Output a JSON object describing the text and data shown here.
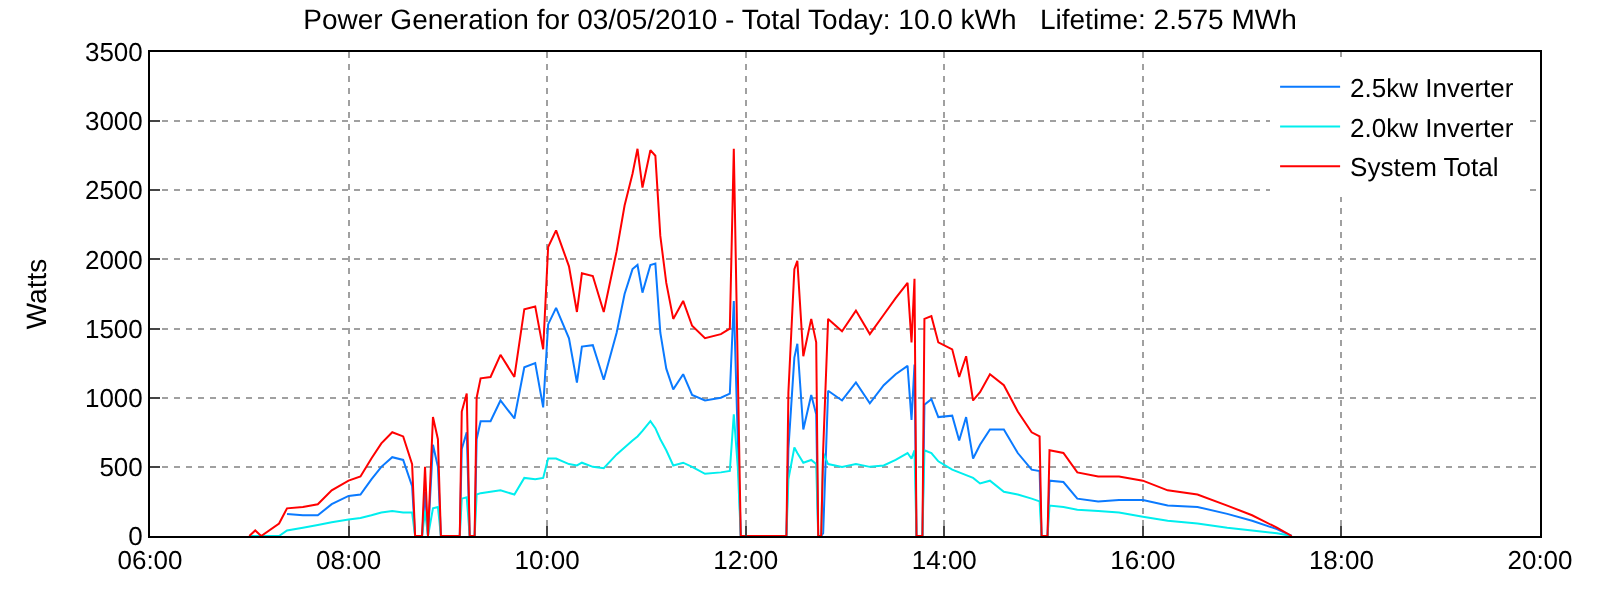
{
  "chart_data": {
    "type": "line",
    "title": "Power Generation for 03/05/2010 - Total Today: 10.0 kWh   Lifetime: 2.575 MWh",
    "ylabel": "Watts",
    "x": [
      7.0,
      7.06,
      7.12,
      7.3,
      7.38,
      7.54,
      7.69,
      7.83,
      8.0,
      8.12,
      8.23,
      8.33,
      8.44,
      8.55,
      8.64,
      8.67,
      8.74,
      8.77,
      8.8,
      8.85,
      8.9,
      8.93,
      9.12,
      9.14,
      9.19,
      9.22,
      9.27,
      9.29,
      9.33,
      9.43,
      9.53,
      9.67,
      9.77,
      9.88,
      9.96,
      10.01,
      10.09,
      10.22,
      10.3,
      10.35,
      10.46,
      10.57,
      10.7,
      10.78,
      10.86,
      10.91,
      10.96,
      11.04,
      11.09,
      11.14,
      11.2,
      11.27,
      11.37,
      11.46,
      11.59,
      11.75,
      11.84,
      11.88,
      11.92,
      11.95,
      12.41,
      12.43,
      12.49,
      12.52,
      12.58,
      12.66,
      12.71,
      12.73,
      12.76,
      12.78,
      12.83,
      12.97,
      13.11,
      13.25,
      13.39,
      13.51,
      13.63,
      13.67,
      13.7,
      13.72,
      13.78,
      13.8,
      13.87,
      13.94,
      14.08,
      14.15,
      14.22,
      14.29,
      14.36,
      14.46,
      14.6,
      14.74,
      14.88,
      14.96,
      14.98,
      15.04,
      15.06,
      15.2,
      15.34,
      15.55,
      15.76,
      16.0,
      16.25,
      16.55,
      16.85,
      17.1,
      17.35,
      17.5
    ],
    "series": [
      {
        "name": "2.5kw Inverter",
        "color": "#0a7aff",
        "values": [
          null,
          null,
          null,
          null,
          160,
          150,
          150,
          230,
          290,
          300,
          410,
          500,
          570,
          550,
          360,
          0,
          0,
          320,
          0,
          660,
          500,
          0,
          0,
          630,
          750,
          0,
          0,
          700,
          830,
          830,
          980,
          850,
          1220,
          1250,
          930,
          1530,
          1650,
          1430,
          1110,
          1370,
          1380,
          1130,
          1470,
          1750,
          1930,
          1960,
          1760,
          1960,
          1970,
          1470,
          1210,
          1060,
          1170,
          1020,
          980,
          1000,
          1030,
          1700,
          700,
          0,
          0,
          630,
          1290,
          1390,
          770,
          1020,
          880,
          0,
          0,
          20,
          1050,
          980,
          1110,
          960,
          1090,
          1170,
          1230,
          840,
          1240,
          0,
          0,
          950,
          990,
          860,
          870,
          690,
          860,
          560,
          660,
          770,
          770,
          600,
          480,
          470,
          0,
          0,
          400,
          390,
          270,
          250,
          260,
          260,
          220,
          210,
          160,
          110,
          50,
          0
        ]
      },
      {
        "name": "2.0kw Inverter",
        "color": "#00eeee",
        "values": [
          0,
          0,
          0,
          0,
          40,
          60,
          80,
          100,
          120,
          130,
          150,
          170,
          180,
          170,
          170,
          0,
          0,
          180,
          0,
          200,
          210,
          0,
          0,
          270,
          280,
          0,
          0,
          300,
          310,
          320,
          330,
          300,
          420,
          410,
          420,
          560,
          560,
          520,
          510,
          530,
          500,
          490,
          590,
          640,
          690,
          720,
          760,
          830,
          780,
          700,
          620,
          510,
          530,
          500,
          450,
          460,
          470,
          880,
          500,
          0,
          0,
          410,
          640,
          600,
          530,
          550,
          520,
          0,
          0,
          600,
          520,
          500,
          520,
          500,
          510,
          550,
          600,
          560,
          620,
          0,
          0,
          620,
          600,
          540,
          480,
          460,
          440,
          420,
          380,
          400,
          320,
          300,
          270,
          250,
          0,
          0,
          220,
          210,
          190,
          180,
          170,
          140,
          110,
          90,
          60,
          40,
          20,
          0
        ]
      },
      {
        "name": "System Total",
        "color": "#ff0000",
        "values": [
          0,
          40,
          0,
          90,
          200,
          210,
          230,
          330,
          400,
          430,
          560,
          670,
          750,
          720,
          520,
          0,
          0,
          500,
          0,
          860,
          700,
          0,
          0,
          900,
          1030,
          0,
          0,
          1000,
          1140,
          1150,
          1310,
          1150,
          1640,
          1660,
          1350,
          2090,
          2210,
          1950,
          1620,
          1900,
          1880,
          1620,
          2060,
          2390,
          2620,
          2800,
          2520,
          2790,
          2750,
          2170,
          1830,
          1570,
          1700,
          1520,
          1430,
          1460,
          1500,
          2800,
          1200,
          0,
          0,
          1040,
          1930,
          1990,
          1300,
          1570,
          1400,
          0,
          0,
          620,
          1570,
          1480,
          1630,
          1460,
          1600,
          1720,
          1830,
          1400,
          1860,
          0,
          0,
          1570,
          1590,
          1400,
          1350,
          1150,
          1300,
          980,
          1040,
          1170,
          1090,
          900,
          750,
          720,
          0,
          0,
          620,
          600,
          460,
          430,
          430,
          400,
          330,
          300,
          220,
          150,
          60,
          0
        ]
      }
    ],
    "xlim": [
      6,
      20
    ],
    "xticks": [
      {
        "value": 6,
        "label": "06:00"
      },
      {
        "value": 8,
        "label": "08:00"
      },
      {
        "value": 10,
        "label": "10:00"
      },
      {
        "value": 12,
        "label": "12:00"
      },
      {
        "value": 14,
        "label": "14:00"
      },
      {
        "value": 16,
        "label": "16:00"
      },
      {
        "value": 18,
        "label": "18:00"
      },
      {
        "value": 20,
        "label": "20:00"
      }
    ],
    "ylim": [
      0,
      3500
    ],
    "yticks": [
      0,
      500,
      1000,
      1500,
      2000,
      2500,
      3000,
      3500
    ],
    "grid": true,
    "legend": "top right",
    "marker": "none",
    "line_style": "solid"
  }
}
